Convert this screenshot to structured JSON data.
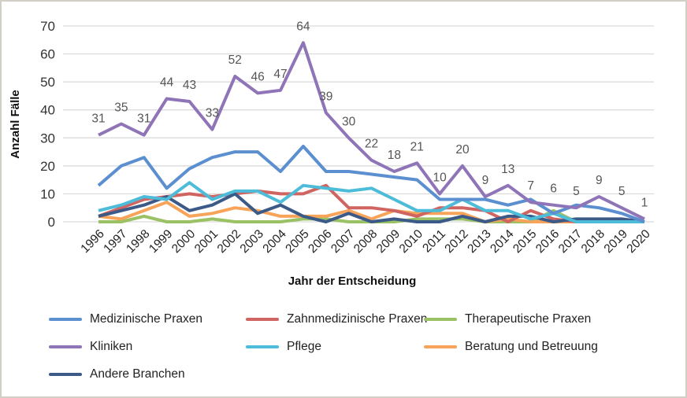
{
  "chart_data": {
    "type": "line",
    "title": "",
    "xlabel": "Jahr der Entscheidung",
    "ylabel": "Anzahl Fälle",
    "ylim": [
      0,
      70
    ],
    "yticks": [
      "0",
      "10",
      "20",
      "30",
      "40",
      "50",
      "60",
      "70"
    ],
    "grid": true,
    "legend_position": "bottom",
    "categories": [
      "1996",
      "1997",
      "1998",
      "1999",
      "2000",
      "2001",
      "2002",
      "2003",
      "2004",
      "2005",
      "2006",
      "2007",
      "2008",
      "2009",
      "2010",
      "2011",
      "2012",
      "2013",
      "2014",
      "2015",
      "2016",
      "2017",
      "2018",
      "2019",
      "2020"
    ],
    "series": [
      {
        "name": "Medizinische Praxen",
        "color": "#5b8fd0",
        "values": [
          13,
          20,
          23,
          12,
          19,
          23,
          25,
          25,
          18,
          27,
          18,
          18,
          17,
          16,
          15,
          8,
          8,
          8,
          6,
          8,
          3,
          6,
          5,
          3,
          0
        ]
      },
      {
        "name": "Zahnmedizinische Praxen",
        "color": "#d06460",
        "values": [
          2,
          5,
          8,
          9,
          10,
          9,
          10,
          11,
          10,
          10,
          13,
          5,
          5,
          4,
          2,
          5,
          5,
          4,
          0,
          4,
          1,
          0,
          0,
          0,
          0
        ]
      },
      {
        "name": "Therapeutische Praxen",
        "color": "#9bc165",
        "values": [
          0,
          0,
          2,
          0,
          0,
          1,
          0,
          0,
          0,
          1,
          1,
          0,
          0,
          0,
          1,
          1,
          1,
          0,
          0,
          0,
          4,
          0,
          0,
          0,
          0
        ]
      },
      {
        "name": "Kliniken",
        "color": "#8f75b8",
        "values": [
          31,
          35,
          31,
          44,
          43,
          33,
          52,
          46,
          47,
          64,
          39,
          30,
          22,
          18,
          21,
          10,
          20,
          9,
          13,
          7,
          6,
          5,
          9,
          5,
          1
        ],
        "data_labels": true
      },
      {
        "name": "Pflege",
        "color": "#4dbcd9",
        "values": [
          4,
          6,
          9,
          8,
          14,
          8,
          11,
          11,
          7,
          13,
          12,
          11,
          12,
          8,
          4,
          4,
          8,
          4,
          4,
          1,
          3,
          0,
          0,
          0,
          0
        ]
      },
      {
        "name": "Beratung und Betreuung",
        "color": "#f7a45a",
        "values": [
          2,
          1,
          4,
          7,
          2,
          3,
          5,
          4,
          2,
          2,
          2,
          4,
          1,
          4,
          3,
          3,
          3,
          0,
          1,
          0,
          0,
          0,
          0,
          0,
          0
        ]
      },
      {
        "name": "Andere Branchen",
        "color": "#3c5a87",
        "values": [
          2,
          4,
          6,
          9,
          4,
          6,
          10,
          3,
          6,
          2,
          0,
          3,
          0,
          1,
          0,
          0,
          2,
          0,
          2,
          2,
          0,
          1,
          1,
          1,
          0
        ]
      }
    ]
  }
}
